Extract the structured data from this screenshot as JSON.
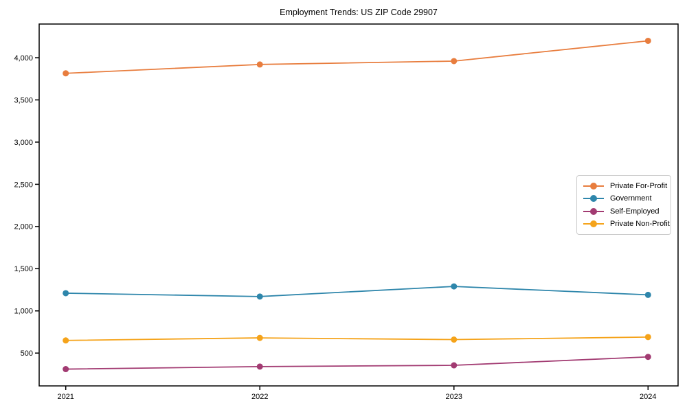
{
  "chart_data": {
    "type": "line",
    "title": "Employment Trends: US ZIP Code 29907",
    "categories": [
      "2021",
      "2022",
      "2023",
      "2024"
    ],
    "series": [
      {
        "name": "Private For-Profit",
        "color": "#e87d3e",
        "values": [
          3815,
          3920,
          3960,
          4200
        ]
      },
      {
        "name": "Government",
        "color": "#2e86ab",
        "values": [
          1210,
          1170,
          1290,
          1190
        ]
      },
      {
        "name": "Self-Employed",
        "color": "#a23b72",
        "values": [
          310,
          340,
          355,
          455
        ]
      },
      {
        "name": "Private Non-Profit",
        "color": "#f5a31a",
        "values": [
          650,
          680,
          660,
          690
        ]
      }
    ],
    "xlabel": "",
    "ylabel": "",
    "yticks": [
      500,
      1000,
      1500,
      2000,
      2500,
      3000,
      3500,
      4000
    ],
    "ytick_labels": [
      "500",
      "1,000",
      "1,500",
      "2,000",
      "2,500",
      "3,000",
      "3,500",
      "4,000"
    ],
    "ylim": [
      110,
      4400
    ],
    "grid": false,
    "legend_position": "center-right",
    "marker": "circle"
  }
}
